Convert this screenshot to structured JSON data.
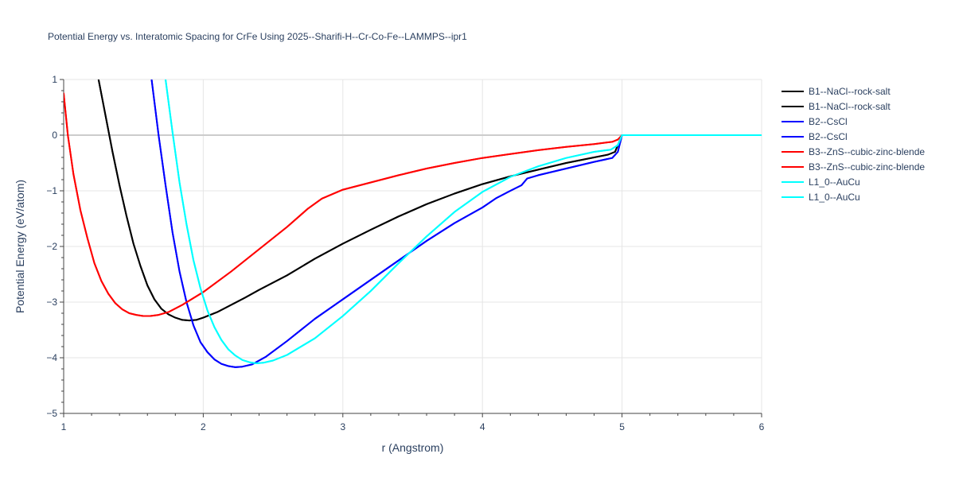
{
  "chart_data": {
    "type": "line",
    "title": "Potential Energy vs. Interatomic Spacing for CrFe Using 2025--Sharifi-H--Cr-Co-Fe--LAMMPS--ipr1",
    "xlabel": "r (Angstrom)",
    "ylabel": "Potential Energy (eV/atom)",
    "xlim": [
      1,
      6
    ],
    "ylim": [
      -5,
      1
    ],
    "x_ticks": [
      "1",
      "2",
      "3",
      "4",
      "5",
      "6"
    ],
    "y_ticks": [
      "1",
      "0",
      "−1",
      "−2",
      "−3",
      "−4",
      "−5"
    ],
    "grid": true,
    "legend_position": "right",
    "series": [
      {
        "name": "B1--NaCl--rock-salt",
        "color": "#000000",
        "points": [
          [
            1.25,
            1.0
          ],
          [
            1.3,
            0.35
          ],
          [
            1.35,
            -0.3
          ],
          [
            1.4,
            -0.9
          ],
          [
            1.45,
            -1.45
          ],
          [
            1.5,
            -1.95
          ],
          [
            1.55,
            -2.35
          ],
          [
            1.6,
            -2.7
          ],
          [
            1.65,
            -2.95
          ],
          [
            1.7,
            -3.12
          ],
          [
            1.75,
            -3.22
          ],
          [
            1.8,
            -3.28
          ],
          [
            1.85,
            -3.32
          ],
          [
            1.9,
            -3.33
          ],
          [
            1.95,
            -3.32
          ],
          [
            2.0,
            -3.28
          ],
          [
            2.1,
            -3.18
          ],
          [
            2.2,
            -3.05
          ],
          [
            2.3,
            -2.92
          ],
          [
            2.4,
            -2.78
          ],
          [
            2.6,
            -2.52
          ],
          [
            2.8,
            -2.22
          ],
          [
            3.0,
            -1.95
          ],
          [
            3.2,
            -1.7
          ],
          [
            3.4,
            -1.46
          ],
          [
            3.6,
            -1.24
          ],
          [
            3.8,
            -1.05
          ],
          [
            4.0,
            -0.88
          ],
          [
            4.2,
            -0.74
          ],
          [
            4.4,
            -0.62
          ],
          [
            4.6,
            -0.5
          ],
          [
            4.8,
            -0.4
          ],
          [
            4.9,
            -0.35
          ],
          [
            4.95,
            -0.3
          ],
          [
            5.0,
            0.0
          ],
          [
            6.0,
            0.0
          ]
        ]
      },
      {
        "name": "B1--NaCl--rock-salt",
        "color": "#000000",
        "points": [
          [
            1.25,
            1.0
          ],
          [
            1.3,
            0.35
          ],
          [
            1.35,
            -0.3
          ],
          [
            1.4,
            -0.9
          ],
          [
            1.45,
            -1.45
          ],
          [
            1.5,
            -1.95
          ],
          [
            1.55,
            -2.35
          ],
          [
            1.6,
            -2.7
          ],
          [
            1.65,
            -2.95
          ],
          [
            1.7,
            -3.12
          ],
          [
            1.75,
            -3.22
          ],
          [
            1.8,
            -3.28
          ],
          [
            1.85,
            -3.32
          ],
          [
            1.9,
            -3.33
          ],
          [
            1.95,
            -3.32
          ],
          [
            2.0,
            -3.28
          ],
          [
            2.1,
            -3.18
          ],
          [
            2.2,
            -3.05
          ],
          [
            2.3,
            -2.92
          ],
          [
            2.4,
            -2.78
          ],
          [
            2.6,
            -2.52
          ],
          [
            2.8,
            -2.22
          ],
          [
            3.0,
            -1.95
          ],
          [
            3.2,
            -1.7
          ],
          [
            3.4,
            -1.46
          ],
          [
            3.6,
            -1.24
          ],
          [
            3.8,
            -1.05
          ],
          [
            4.0,
            -0.88
          ],
          [
            4.2,
            -0.74
          ],
          [
            4.4,
            -0.62
          ],
          [
            4.6,
            -0.5
          ],
          [
            4.8,
            -0.4
          ],
          [
            4.9,
            -0.35
          ],
          [
            4.95,
            -0.3
          ],
          [
            5.0,
            0.0
          ],
          [
            6.0,
            0.0
          ]
        ]
      },
      {
        "name": "B2--CsCl",
        "color": "#0000ff",
        "points": [
          [
            1.63,
            1.0
          ],
          [
            1.68,
            0.0
          ],
          [
            1.73,
            -0.9
          ],
          [
            1.78,
            -1.75
          ],
          [
            1.83,
            -2.45
          ],
          [
            1.88,
            -3.0
          ],
          [
            1.93,
            -3.42
          ],
          [
            1.98,
            -3.72
          ],
          [
            2.03,
            -3.9
          ],
          [
            2.08,
            -4.03
          ],
          [
            2.13,
            -4.11
          ],
          [
            2.18,
            -4.15
          ],
          [
            2.23,
            -4.17
          ],
          [
            2.28,
            -4.16
          ],
          [
            2.35,
            -4.12
          ],
          [
            2.45,
            -3.98
          ],
          [
            2.6,
            -3.7
          ],
          [
            2.8,
            -3.3
          ],
          [
            3.0,
            -2.95
          ],
          [
            3.2,
            -2.6
          ],
          [
            3.4,
            -2.25
          ],
          [
            3.6,
            -1.9
          ],
          [
            3.8,
            -1.58
          ],
          [
            4.0,
            -1.3
          ],
          [
            4.1,
            -1.13
          ],
          [
            4.2,
            -1.0
          ],
          [
            4.28,
            -0.9
          ],
          [
            4.32,
            -0.78
          ],
          [
            4.4,
            -0.72
          ],
          [
            4.6,
            -0.6
          ],
          [
            4.8,
            -0.48
          ],
          [
            4.93,
            -0.41
          ],
          [
            4.97,
            -0.3
          ],
          [
            5.0,
            0.0
          ],
          [
            6.0,
            0.0
          ]
        ]
      },
      {
        "name": "B2--CsCl",
        "color": "#0000ff",
        "points": [
          [
            1.63,
            1.0
          ],
          [
            1.68,
            0.0
          ],
          [
            1.73,
            -0.9
          ],
          [
            1.78,
            -1.75
          ],
          [
            1.83,
            -2.45
          ],
          [
            1.88,
            -3.0
          ],
          [
            1.93,
            -3.42
          ],
          [
            1.98,
            -3.72
          ],
          [
            2.03,
            -3.9
          ],
          [
            2.08,
            -4.03
          ],
          [
            2.13,
            -4.11
          ],
          [
            2.18,
            -4.15
          ],
          [
            2.23,
            -4.17
          ],
          [
            2.28,
            -4.16
          ],
          [
            2.35,
            -4.12
          ],
          [
            2.45,
            -3.98
          ],
          [
            2.6,
            -3.7
          ],
          [
            2.8,
            -3.3
          ],
          [
            3.0,
            -2.95
          ],
          [
            3.2,
            -2.6
          ],
          [
            3.4,
            -2.25
          ],
          [
            3.6,
            -1.9
          ],
          [
            3.8,
            -1.58
          ],
          [
            4.0,
            -1.3
          ],
          [
            4.1,
            -1.13
          ],
          [
            4.2,
            -1.0
          ],
          [
            4.28,
            -0.9
          ],
          [
            4.32,
            -0.78
          ],
          [
            4.4,
            -0.72
          ],
          [
            4.6,
            -0.6
          ],
          [
            4.8,
            -0.48
          ],
          [
            4.93,
            -0.41
          ],
          [
            4.97,
            -0.3
          ],
          [
            5.0,
            0.0
          ],
          [
            6.0,
            0.0
          ]
        ]
      },
      {
        "name": "B3--ZnS--cubic-zinc-blende",
        "color": "#ff0000",
        "points": [
          [
            1.0,
            0.75
          ],
          [
            1.03,
            0.0
          ],
          [
            1.07,
            -0.7
          ],
          [
            1.12,
            -1.35
          ],
          [
            1.17,
            -1.85
          ],
          [
            1.22,
            -2.3
          ],
          [
            1.27,
            -2.62
          ],
          [
            1.32,
            -2.85
          ],
          [
            1.37,
            -3.02
          ],
          [
            1.42,
            -3.13
          ],
          [
            1.47,
            -3.2
          ],
          [
            1.52,
            -3.23
          ],
          [
            1.57,
            -3.25
          ],
          [
            1.62,
            -3.25
          ],
          [
            1.68,
            -3.23
          ],
          [
            1.75,
            -3.18
          ],
          [
            1.85,
            -3.05
          ],
          [
            2.0,
            -2.82
          ],
          [
            2.2,
            -2.45
          ],
          [
            2.4,
            -2.05
          ],
          [
            2.6,
            -1.65
          ],
          [
            2.75,
            -1.32
          ],
          [
            2.85,
            -1.14
          ],
          [
            3.0,
            -0.98
          ],
          [
            3.2,
            -0.85
          ],
          [
            3.4,
            -0.72
          ],
          [
            3.6,
            -0.6
          ],
          [
            3.8,
            -0.5
          ],
          [
            4.0,
            -0.41
          ],
          [
            4.2,
            -0.34
          ],
          [
            4.4,
            -0.27
          ],
          [
            4.6,
            -0.21
          ],
          [
            4.8,
            -0.16
          ],
          [
            4.93,
            -0.12
          ],
          [
            4.97,
            -0.08
          ],
          [
            5.0,
            0.0
          ],
          [
            6.0,
            0.0
          ]
        ]
      },
      {
        "name": "B3--ZnS--cubic-zinc-blende",
        "color": "#ff0000",
        "points": [
          [
            1.0,
            0.75
          ],
          [
            1.03,
            0.0
          ],
          [
            1.07,
            -0.7
          ],
          [
            1.12,
            -1.35
          ],
          [
            1.17,
            -1.85
          ],
          [
            1.22,
            -2.3
          ],
          [
            1.27,
            -2.62
          ],
          [
            1.32,
            -2.85
          ],
          [
            1.37,
            -3.02
          ],
          [
            1.42,
            -3.13
          ],
          [
            1.47,
            -3.2
          ],
          [
            1.52,
            -3.23
          ],
          [
            1.57,
            -3.25
          ],
          [
            1.62,
            -3.25
          ],
          [
            1.68,
            -3.23
          ],
          [
            1.75,
            -3.18
          ],
          [
            1.85,
            -3.05
          ],
          [
            2.0,
            -2.82
          ],
          [
            2.2,
            -2.45
          ],
          [
            2.4,
            -2.05
          ],
          [
            2.6,
            -1.65
          ],
          [
            2.75,
            -1.32
          ],
          [
            2.85,
            -1.14
          ],
          [
            3.0,
            -0.98
          ],
          [
            3.2,
            -0.85
          ],
          [
            3.4,
            -0.72
          ],
          [
            3.6,
            -0.6
          ],
          [
            3.8,
            -0.5
          ],
          [
            4.0,
            -0.41
          ],
          [
            4.2,
            -0.34
          ],
          [
            4.4,
            -0.27
          ],
          [
            4.6,
            -0.21
          ],
          [
            4.8,
            -0.16
          ],
          [
            4.93,
            -0.12
          ],
          [
            4.97,
            -0.08
          ],
          [
            5.0,
            0.0
          ],
          [
            6.0,
            0.0
          ]
        ]
      },
      {
        "name": "L1_0--AuCu",
        "color": "#00ffff",
        "points": [
          [
            1.73,
            1.0
          ],
          [
            1.78,
            0.05
          ],
          [
            1.83,
            -0.85
          ],
          [
            1.88,
            -1.6
          ],
          [
            1.93,
            -2.25
          ],
          [
            1.98,
            -2.75
          ],
          [
            2.03,
            -3.15
          ],
          [
            2.08,
            -3.45
          ],
          [
            2.13,
            -3.68
          ],
          [
            2.18,
            -3.85
          ],
          [
            2.23,
            -3.96
          ],
          [
            2.28,
            -4.04
          ],
          [
            2.33,
            -4.08
          ],
          [
            2.38,
            -4.1
          ],
          [
            2.43,
            -4.09
          ],
          [
            2.5,
            -4.05
          ],
          [
            2.6,
            -3.95
          ],
          [
            2.8,
            -3.65
          ],
          [
            3.0,
            -3.25
          ],
          [
            3.2,
            -2.8
          ],
          [
            3.4,
            -2.3
          ],
          [
            3.6,
            -1.82
          ],
          [
            3.8,
            -1.38
          ],
          [
            4.0,
            -1.02
          ],
          [
            4.2,
            -0.75
          ],
          [
            4.4,
            -0.56
          ],
          [
            4.6,
            -0.41
          ],
          [
            4.8,
            -0.3
          ],
          [
            4.92,
            -0.26
          ],
          [
            4.97,
            -0.18
          ],
          [
            5.0,
            0.0
          ],
          [
            6.0,
            0.0
          ]
        ]
      },
      {
        "name": "L1_0--AuCu",
        "color": "#00ffff",
        "points": [
          [
            1.73,
            1.0
          ],
          [
            1.78,
            0.05
          ],
          [
            1.83,
            -0.85
          ],
          [
            1.88,
            -1.6
          ],
          [
            1.93,
            -2.25
          ],
          [
            1.98,
            -2.75
          ],
          [
            2.03,
            -3.15
          ],
          [
            2.08,
            -3.45
          ],
          [
            2.13,
            -3.68
          ],
          [
            2.18,
            -3.85
          ],
          [
            2.23,
            -3.96
          ],
          [
            2.28,
            -4.04
          ],
          [
            2.33,
            -4.08
          ],
          [
            2.38,
            -4.1
          ],
          [
            2.43,
            -4.09
          ],
          [
            2.5,
            -4.05
          ],
          [
            2.6,
            -3.95
          ],
          [
            2.8,
            -3.65
          ],
          [
            3.0,
            -3.25
          ],
          [
            3.2,
            -2.8
          ],
          [
            3.4,
            -2.3
          ],
          [
            3.6,
            -1.82
          ],
          [
            3.8,
            -1.38
          ],
          [
            4.0,
            -1.02
          ],
          [
            4.2,
            -0.75
          ],
          [
            4.4,
            -0.56
          ],
          [
            4.6,
            -0.41
          ],
          [
            4.8,
            -0.3
          ],
          [
            4.92,
            -0.26
          ],
          [
            4.97,
            -0.18
          ],
          [
            5.0,
            0.0
          ],
          [
            6.0,
            0.0
          ]
        ]
      }
    ]
  }
}
